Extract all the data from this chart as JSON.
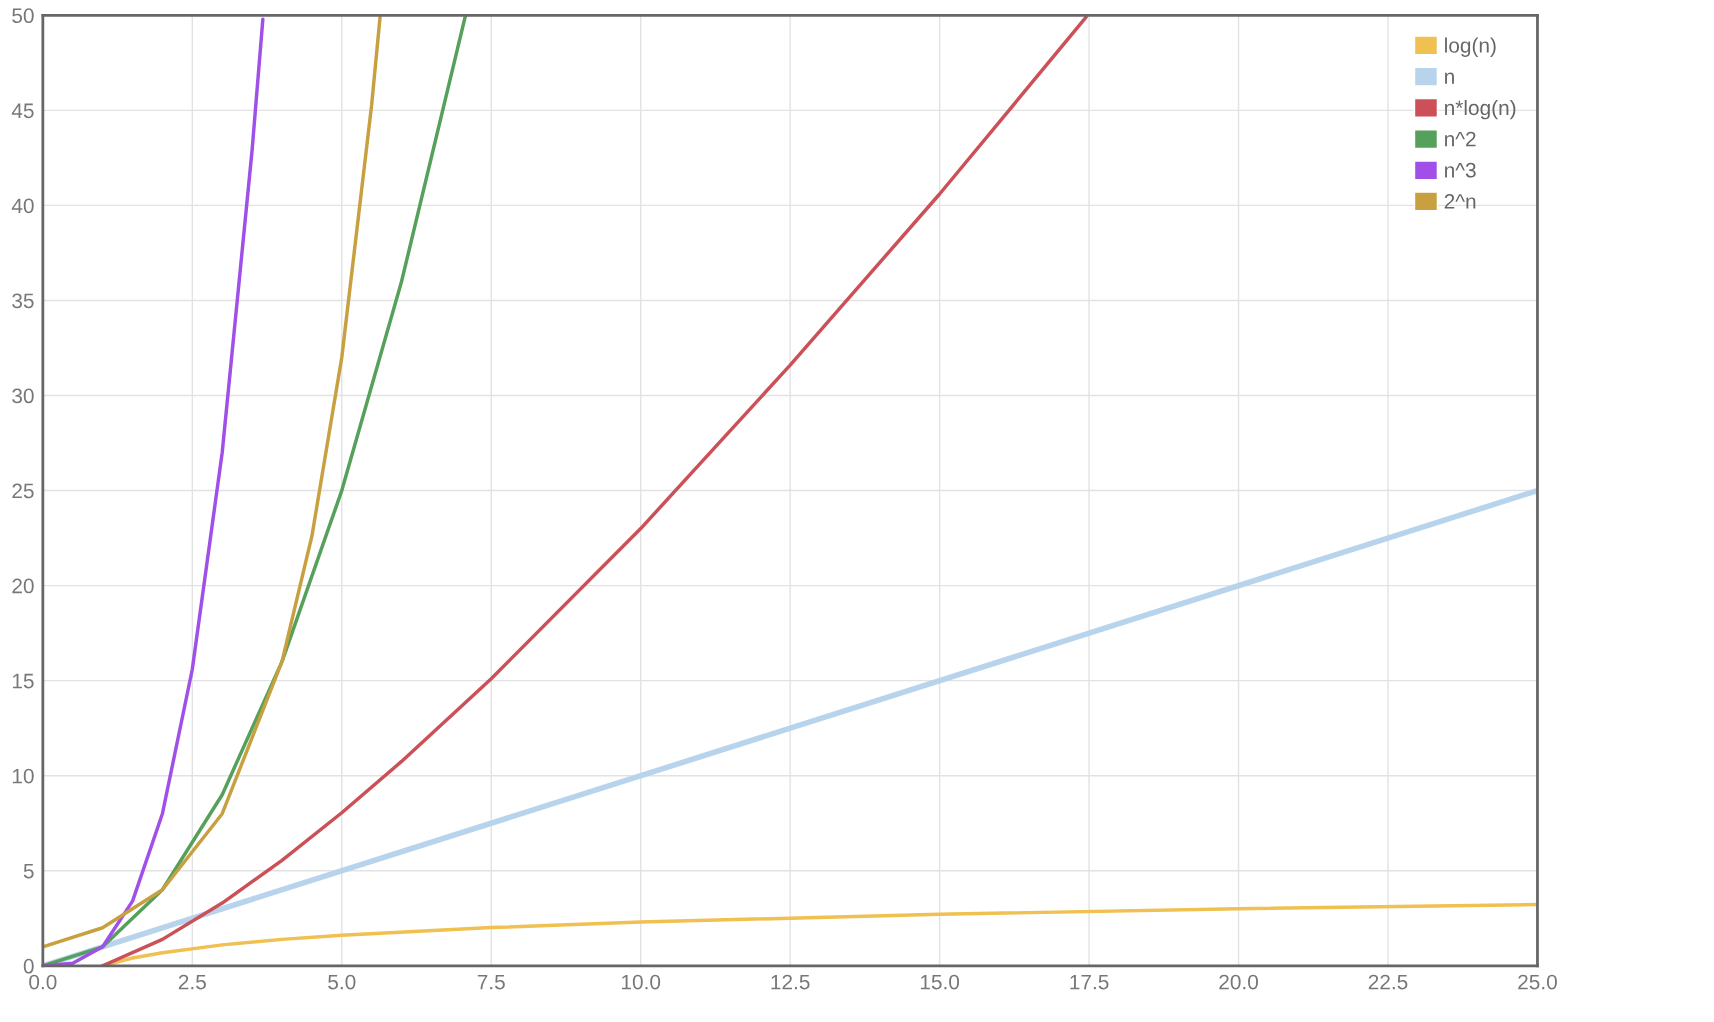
{
  "chart_data": {
    "type": "line",
    "xlim": [
      0,
      25
    ],
    "ylim": [
      0,
      50
    ],
    "xticks": [
      {
        "value": 0,
        "label": "0.0"
      },
      {
        "value": 2.5,
        "label": "2.5"
      },
      {
        "value": 5,
        "label": "5.0"
      },
      {
        "value": 7.5,
        "label": "7.5"
      },
      {
        "value": 10,
        "label": "10.0"
      },
      {
        "value": 12.5,
        "label": "12.5"
      },
      {
        "value": 15,
        "label": "15.0"
      },
      {
        "value": 17.5,
        "label": "17.5"
      },
      {
        "value": 20,
        "label": "20.0"
      },
      {
        "value": 22.5,
        "label": "22.5"
      },
      {
        "value": 25,
        "label": "25.0"
      }
    ],
    "yticks": [
      0,
      5,
      10,
      15,
      20,
      25,
      30,
      35,
      40,
      45,
      50
    ],
    "grid": true,
    "legend": "top right",
    "marker": "none",
    "line_style": "solid",
    "series": [
      {
        "name": "log(n)",
        "color": "#f0c050",
        "x": [
          1,
          1.5,
          2,
          3,
          4,
          5,
          7.5,
          10,
          15,
          20,
          25
        ],
        "values": [
          0,
          0.41,
          0.69,
          1.1,
          1.39,
          1.61,
          2.01,
          2.3,
          2.71,
          3.0,
          3.22
        ]
      },
      {
        "name": "n",
        "color": "#b8d4ec",
        "x": [
          0,
          25
        ],
        "values": [
          0,
          25
        ]
      },
      {
        "name": "n*log(n)",
        "color": "#cc5058",
        "x": [
          1,
          2,
          3,
          4,
          5,
          6,
          7.5,
          10,
          12.5,
          15,
          17.45
        ],
        "values": [
          0,
          1.39,
          3.3,
          5.55,
          8.05,
          10.75,
          15.1,
          23.0,
          31.6,
          40.6,
          49.9
        ]
      },
      {
        "name": "n^2",
        "color": "#55a05a",
        "x": [
          0,
          1,
          2,
          3,
          4,
          5,
          6,
          7.07
        ],
        "values": [
          0,
          1,
          4,
          9,
          16,
          25,
          36,
          50
        ]
      },
      {
        "name": "n^3",
        "color": "#a050e8",
        "x": [
          0,
          0.5,
          1,
          1.5,
          2,
          2.5,
          3,
          3.5,
          3.68
        ],
        "values": [
          0,
          0.13,
          1,
          3.4,
          8,
          15.6,
          27,
          42.9,
          49.8
        ]
      },
      {
        "name": "2^n",
        "color": "#c8a040",
        "x": [
          0,
          1,
          2,
          3,
          4,
          4.5,
          5,
          5.5,
          5.64
        ],
        "values": [
          1,
          2,
          4,
          8,
          16,
          22.6,
          32,
          45.3,
          49.9
        ]
      }
    ]
  }
}
